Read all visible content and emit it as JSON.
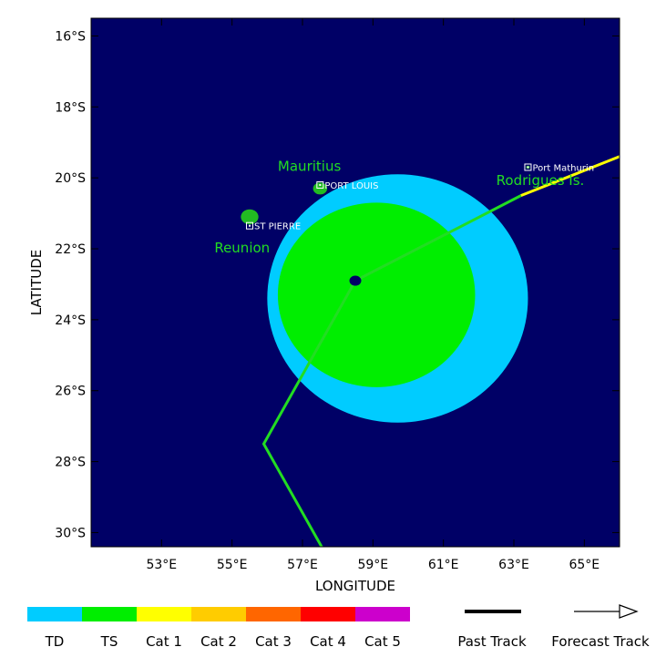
{
  "map": {
    "lon_range": [
      51,
      66
    ],
    "lat_range": [
      -30.4,
      -15.5
    ],
    "ocean_color": "#000066",
    "x_ticks": [
      {
        "lon": 53,
        "label": "53°E"
      },
      {
        "lon": 55,
        "label": "55°E"
      },
      {
        "lon": 57,
        "label": "57°E"
      },
      {
        "lon": 59,
        "label": "59°E"
      },
      {
        "lon": 61,
        "label": "61°E"
      },
      {
        "lon": 63,
        "label": "63°E"
      },
      {
        "lon": 65,
        "label": "65°E"
      }
    ],
    "y_ticks": [
      {
        "lat": -16,
        "label": "16°S"
      },
      {
        "lat": -18,
        "label": "18°S"
      },
      {
        "lat": -20,
        "label": "20°S"
      },
      {
        "lat": -22,
        "label": "22°S"
      },
      {
        "lat": -24,
        "label": "24°S"
      },
      {
        "lat": -26,
        "label": "26°S"
      },
      {
        "lat": -28,
        "label": "28°S"
      },
      {
        "lat": -30,
        "label": "30°S"
      }
    ],
    "xlabel": "LONGITUDE",
    "ylabel": "LATITUDE"
  },
  "wind_field": {
    "td": {
      "center": [
        59.7,
        -23.4
      ],
      "r_lon": 3.7,
      "r_lat": 3.5,
      "color": "#00ccff"
    },
    "ts": {
      "center": [
        59.1,
        -23.3
      ],
      "r_lon": 2.8,
      "r_lat": 2.6,
      "color": "#00ee00"
    }
  },
  "storm_center": [
    58.5,
    -22.9
  ],
  "tracks": [
    {
      "type": "past",
      "color": "#ffff00",
      "points": [
        [
          66,
          -19.4
        ],
        [
          63.2,
          -20.5
        ]
      ]
    },
    {
      "type": "past",
      "color": "#22dd22",
      "points": [
        [
          63.2,
          -20.5
        ],
        [
          58.5,
          -22.9
        ],
        [
          55.9,
          -27.5
        ],
        [
          57.6,
          -30.5
        ]
      ]
    }
  ],
  "islands": [
    {
      "name": "Mauritius",
      "label": "Mauritius",
      "center": [
        57.5,
        -20.3
      ],
      "r": 0.2,
      "color": "#22bb22",
      "label_at": [
        56.3,
        -19.8
      ]
    },
    {
      "name": "Reunion",
      "label": "Reunion",
      "center": [
        55.5,
        -21.1
      ],
      "r": 0.25,
      "color": "#22bb22",
      "label_at": [
        54.5,
        -22.1
      ]
    },
    {
      "name": "Rodrigues",
      "label": "Rodrigues Is.",
      "center": [
        63.4,
        -19.7
      ],
      "r": 0.05,
      "color": "#22bb22",
      "label_at": [
        62.5,
        -20.2
      ]
    }
  ],
  "cities": [
    {
      "name": "PORT LOUIS",
      "lonlat": [
        57.5,
        -20.2
      ]
    },
    {
      "name": "ST PIERRE",
      "lonlat": [
        55.5,
        -21.35
      ]
    },
    {
      "name": "Port Mathurin",
      "lonlat": [
        63.4,
        -19.7
      ]
    }
  ],
  "legend": {
    "categories": [
      {
        "label": "TD",
        "color": "#00ccff"
      },
      {
        "label": "TS",
        "color": "#00ee00"
      },
      {
        "label": "Cat 1",
        "color": "#ffff00"
      },
      {
        "label": "Cat 2",
        "color": "#ffcc00"
      },
      {
        "label": "Cat 3",
        "color": "#ff6600"
      },
      {
        "label": "Cat 4",
        "color": "#ff0000"
      },
      {
        "label": "Cat 5",
        "color": "#cc00cc"
      }
    ],
    "past_track_label": "Past Track",
    "forecast_track_label": "Forecast Track"
  }
}
